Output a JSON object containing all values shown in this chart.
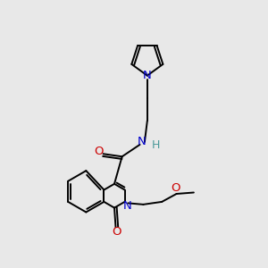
{
  "bg_color": "#e8e8e8",
  "bond_color": "#000000",
  "N_color": "#0000cc",
  "O_color": "#cc0000",
  "H_color": "#4a9999",
  "figsize": [
    3.0,
    3.0
  ],
  "dpi": 100,
  "xlim": [
    0,
    10
  ],
  "ylim": [
    0,
    10
  ]
}
